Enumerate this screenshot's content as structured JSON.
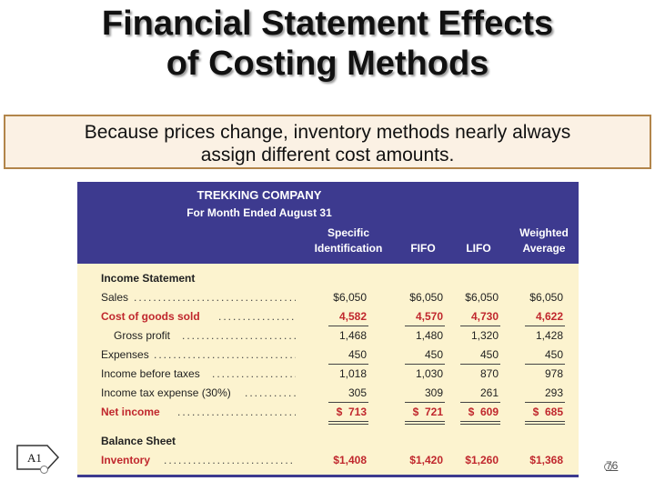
{
  "slide": {
    "title_line1": "Financial Statement Effects",
    "title_line2": "of Costing Methods",
    "callout_line1": "Because prices change, inventory methods nearly always",
    "callout_line2": "assign different cost amounts.",
    "badge": "A1",
    "page_number": "76"
  },
  "table": {
    "company": "TREKKING COMPANY",
    "period": "For Month Ended August 31",
    "columns": [
      {
        "line1": "Specific",
        "line2": "Identification"
      },
      {
        "line1": "",
        "line2": "FIFO"
      },
      {
        "line1": "",
        "line2": "LIFO"
      },
      {
        "line1": "Weighted",
        "line2": "Average"
      }
    ],
    "section_income": "Income Statement",
    "section_balance": "Balance Sheet",
    "rows": {
      "sales": {
        "label": "Sales",
        "values": [
          "$6,050",
          "$6,050",
          "$6,050",
          "$6,050"
        ]
      },
      "cogs": {
        "label": "Cost of goods sold",
        "values": [
          "4,582",
          "4,570",
          "4,730",
          "4,622"
        ]
      },
      "gross": {
        "label": "Gross profit",
        "values": [
          "1,468",
          "1,480",
          "1,320",
          "1,428"
        ]
      },
      "expenses": {
        "label": "Expenses",
        "values": [
          "450",
          "450",
          "450",
          "450"
        ]
      },
      "ibt": {
        "label": "Income before taxes",
        "values": [
          "1,018",
          "1,030",
          "870",
          "978"
        ]
      },
      "tax": {
        "label": "Income tax expense (30%)",
        "values": [
          "305",
          "309",
          "261",
          "293"
        ]
      },
      "net": {
        "label": "Net income",
        "values": [
          "$  713",
          "$  721",
          "$  609",
          "$  685"
        ]
      },
      "inventory": {
        "label": "Inventory",
        "values": [
          "$1,408",
          "$1,420",
          "$1,260",
          "$1,368"
        ]
      }
    }
  },
  "colors": {
    "header_bg": "#3d3a8f",
    "panel_bg": "#fcf3cf",
    "highlight_red": "#c0272d",
    "callout_border": "#b2854a",
    "callout_bg": "#fbf1e4"
  }
}
